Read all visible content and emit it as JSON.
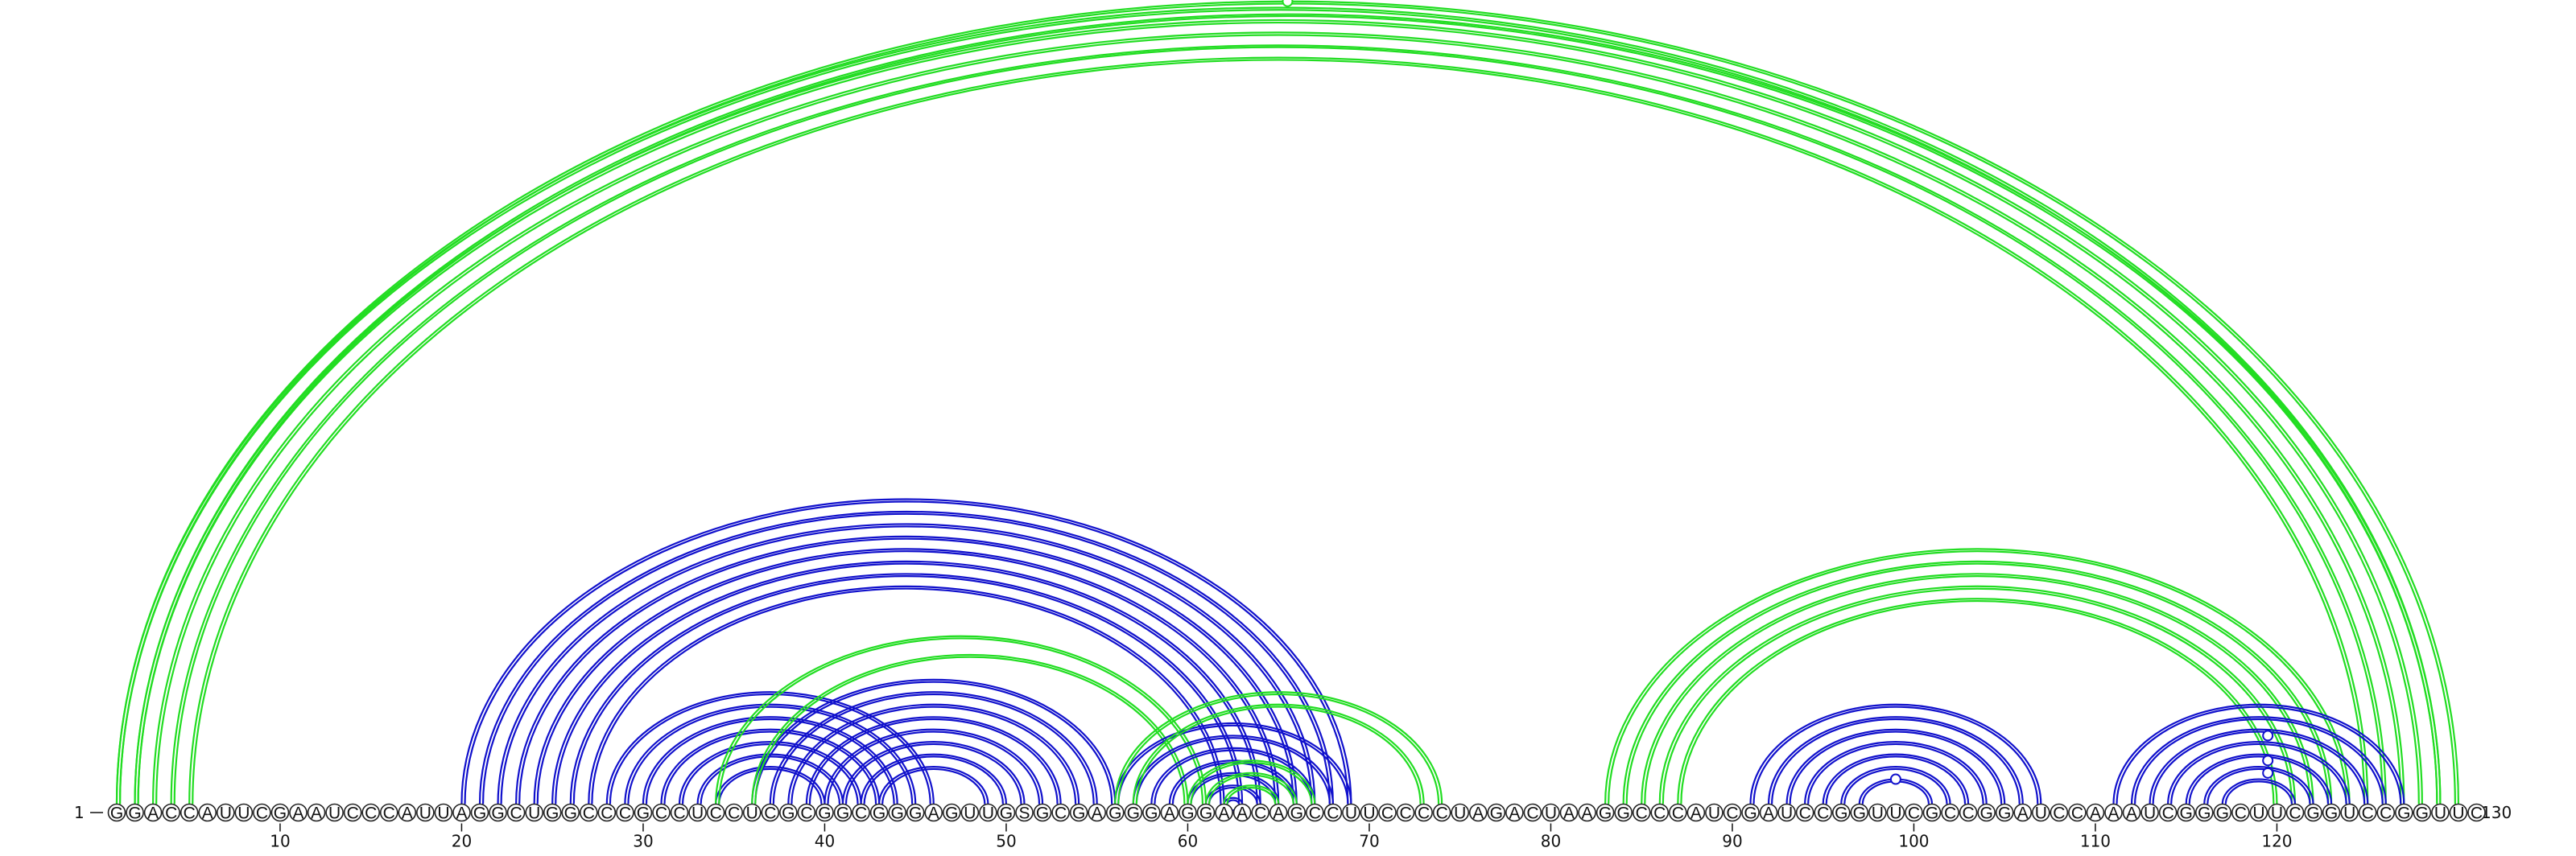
{
  "sequence": "GGACCAUUCGAAUCCCAUUAGGCUGGCCCGCCUCCUCGCGGCGGGAGUUGSGCGAGGGAGGAACAGCCUUCCCCUAGACUAAGGCCCAUCGAUCCGGUUCGCCGGAUCCAAAUCGGGCUUCGGUCCGGUUC",
  "start_label": "1",
  "end_label": "130",
  "tick_labels": [
    "10",
    "20",
    "30",
    "40",
    "50",
    "60",
    "70",
    "80",
    "90",
    "100",
    "110",
    "120"
  ],
  "colors": {
    "arc_blue": "#1111cc",
    "arc_green": "#22dd22",
    "text": "#111111"
  },
  "arc_groups": [
    {
      "color": "green",
      "i": [
        1,
        2,
        3,
        4,
        5
      ],
      "j": [
        129,
        128,
        127,
        126,
        125
      ],
      "doubled": true
    },
    {
      "color": "green",
      "i": [
        1,
        2
      ],
      "j": [
        130,
        129
      ],
      "doubled": false
    },
    {
      "color": "blue",
      "i": [
        20,
        21,
        22,
        23,
        24,
        25,
        26,
        27
      ],
      "j": [
        69,
        68,
        67,
        66,
        65,
        64,
        63,
        62
      ]
    },
    {
      "color": "blue",
      "i": [
        28,
        29,
        30,
        31,
        32,
        33,
        34
      ],
      "j": [
        46,
        45,
        44,
        43,
        42,
        41,
        40
      ]
    },
    {
      "color": "blue",
      "i": [
        36,
        37,
        38,
        39,
        40,
        41,
        42,
        43
      ],
      "j": [
        56,
        55,
        54,
        53,
        52,
        51,
        50,
        49
      ]
    },
    {
      "color": "green",
      "i": [
        34,
        36
      ],
      "j": [
        61,
        60
      ]
    },
    {
      "color": "blue",
      "i": [
        56,
        57,
        58,
        59,
        60,
        61,
        62,
        63
      ],
      "j": [
        69,
        68,
        67,
        66,
        65,
        64,
        63,
        62
      ],
      "shifted": true
    },
    {
      "color": "green",
      "i": [
        56,
        57
      ],
      "j": [
        74,
        73
      ]
    },
    {
      "color": "green",
      "i": [
        60,
        61,
        62
      ],
      "j": [
        67,
        66,
        65
      ]
    },
    {
      "color": "green",
      "i": [
        83,
        84,
        85,
        86,
        87
      ],
      "j": [
        124,
        123,
        122,
        121,
        120
      ]
    },
    {
      "color": "blue",
      "i": [
        91,
        92,
        93,
        94,
        95,
        96,
        97
      ],
      "j": [
        107,
        106,
        105,
        104,
        103,
        102,
        101
      ]
    },
    {
      "color": "blue",
      "i": [
        111,
        112,
        113,
        114,
        115,
        116,
        117
      ],
      "j": [
        127,
        126,
        125,
        124,
        123,
        122,
        121
      ]
    }
  ],
  "markers": [
    {
      "color": "green",
      "pair": [
        1,
        130
      ]
    },
    {
      "color": "blue",
      "pair": [
        97,
        101
      ]
    },
    {
      "color": "blue",
      "pair": [
        114,
        125
      ]
    },
    {
      "color": "blue",
      "pair": [
        116,
        123
      ]
    },
    {
      "color": "blue",
      "pair": [
        117,
        122
      ]
    }
  ]
}
